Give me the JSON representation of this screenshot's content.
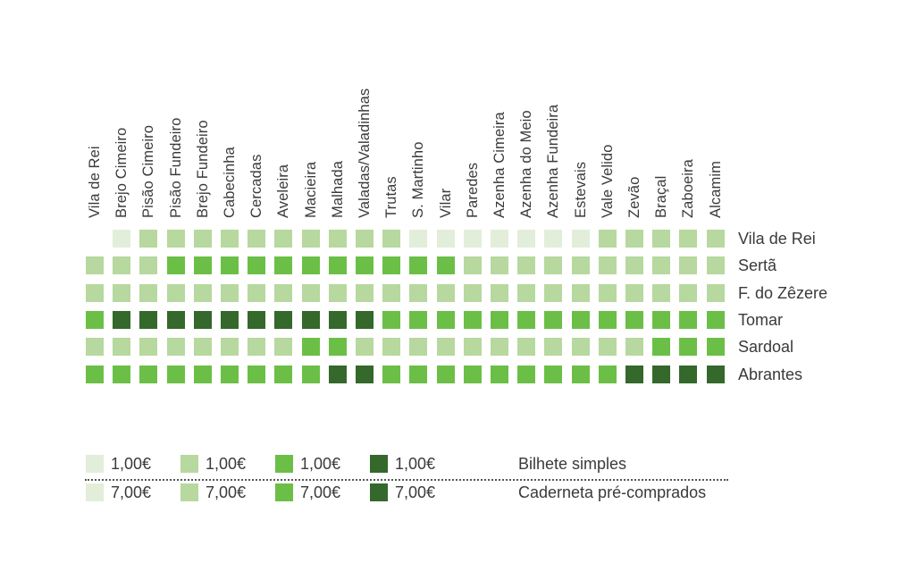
{
  "colors": {
    "L1": "#e2eed9",
    "L2": "#b7d89e",
    "L3": "#6cbf46",
    "L4": "#35682b"
  },
  "chart_data": {
    "type": "heatmap",
    "title": "",
    "columns": [
      "Vila de Rei",
      "Brejo Cimeiro",
      "Pisão Cimeiro",
      "Pisão Fundeiro",
      "Brejo Fundeiro",
      "Cabecinha",
      "Cercadas",
      "Aveleira",
      "Macieira",
      "Malhada",
      "Valadas/Valadinhas",
      "Trutas",
      "S. Martinho",
      "Vilar",
      "Paredes",
      "Azenha Cimeira",
      "Azenha do Meio",
      "Azenha Fundeira",
      "Estevais",
      "Vale Velido",
      "Zevão",
      "Braçal",
      "Zaboeira",
      "Alcamim"
    ],
    "rows": [
      {
        "name": "Vila de Rei",
        "levels": [
          0,
          1,
          2,
          2,
          2,
          2,
          2,
          2,
          2,
          2,
          2,
          2,
          1,
          1,
          1,
          1,
          1,
          1,
          1,
          2,
          2,
          2,
          2,
          2
        ]
      },
      {
        "name": "Sertã",
        "levels": [
          2,
          2,
          2,
          3,
          3,
          3,
          3,
          3,
          3,
          3,
          3,
          3,
          3,
          3,
          2,
          2,
          2,
          2,
          2,
          2,
          2,
          2,
          2,
          2
        ]
      },
      {
        "name": "F. do Zêzere",
        "levels": [
          2,
          2,
          2,
          2,
          2,
          2,
          2,
          2,
          2,
          2,
          2,
          2,
          2,
          2,
          2,
          2,
          2,
          2,
          2,
          2,
          2,
          2,
          2,
          2
        ]
      },
      {
        "name": "Tomar",
        "levels": [
          3,
          4,
          4,
          4,
          4,
          4,
          4,
          4,
          4,
          4,
          4,
          3,
          3,
          3,
          3,
          3,
          3,
          3,
          3,
          3,
          3,
          3,
          3,
          3
        ]
      },
      {
        "name": "Sardoal",
        "levels": [
          2,
          2,
          2,
          2,
          2,
          2,
          2,
          2,
          3,
          3,
          2,
          2,
          2,
          2,
          2,
          2,
          2,
          2,
          2,
          2,
          2,
          3,
          3,
          3
        ]
      },
      {
        "name": "Abrantes",
        "levels": [
          3,
          3,
          3,
          3,
          3,
          3,
          3,
          3,
          3,
          4,
          4,
          3,
          3,
          3,
          3,
          3,
          3,
          3,
          3,
          3,
          4,
          4,
          4,
          4
        ]
      }
    ],
    "legend": {
      "levels": [
        1,
        2,
        3,
        4
      ],
      "rows": [
        {
          "caption": "Bilhete simples",
          "values": [
            "1,00€",
            "1,00€",
            "1,00€",
            "1,00€"
          ]
        },
        {
          "caption": "Caderneta pré-comprados",
          "values": [
            "7,00€",
            "7,00€",
            "7,00€",
            "7,00€"
          ]
        }
      ]
    }
  }
}
